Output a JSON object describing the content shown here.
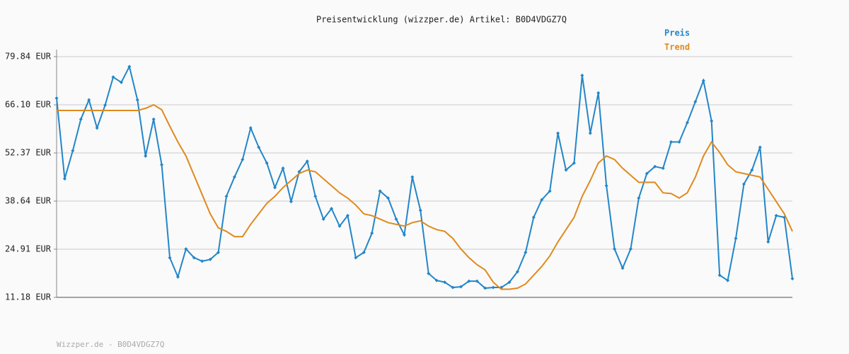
{
  "chart_data": {
    "type": "line",
    "title": "Preisentwicklung (wizzper.de) Artikel: B0D4VDGZ7Q",
    "footer": "Wizzper.de - B0D4VDGZ7Q",
    "ylim": [
      11.18,
      79.84
    ],
    "yticks": [
      {
        "value": 11.18,
        "label": "11.18 EUR"
      },
      {
        "value": 24.91,
        "label": "24.91 EUR"
      },
      {
        "value": 38.64,
        "label": "38.64 EUR"
      },
      {
        "value": 52.37,
        "label": "52.37 EUR"
      },
      {
        "value": 66.1,
        "label": "66.10 EUR"
      },
      {
        "value": 79.84,
        "label": "79.84 EUR"
      }
    ],
    "grid": true,
    "legend": "top-right",
    "series": [
      {
        "name": "Preis",
        "color": "#2386c8",
        "markers": true,
        "values": [
          68,
          45,
          53,
          62,
          67.5,
          59.5,
          66,
          74,
          72.5,
          77,
          67.5,
          51.5,
          62,
          49,
          22.5,
          17,
          25,
          22.5,
          21.5,
          22,
          24,
          40,
          45.5,
          50.5,
          59.5,
          54,
          49.5,
          42.5,
          48,
          38.5,
          47,
          50,
          40,
          33.5,
          36.5,
          31.5,
          34.5,
          22.5,
          24,
          29.5,
          41.5,
          39.5,
          33.5,
          29,
          45.5,
          36,
          18,
          16,
          15.5,
          14,
          14.2,
          15.8,
          15.8,
          13.8,
          14,
          14,
          15.5,
          18.5,
          24,
          34,
          39,
          41.5,
          58,
          47.5,
          49.5,
          74.5,
          58,
          69.5,
          43,
          25,
          19.5,
          25,
          39.5,
          46.5,
          48.5,
          48,
          55.5,
          55.5,
          61,
          67,
          73,
          61.5,
          17.5,
          16,
          28,
          43.5,
          47.5,
          54,
          27,
          34.5,
          34,
          16.5
        ]
      },
      {
        "name": "Trend",
        "color": "#e08a1e",
        "markers": false,
        "values": [
          64.5,
          64.5,
          64.5,
          64.5,
          64.5,
          64.5,
          64.5,
          64.5,
          64.5,
          64.5,
          64.5,
          65.1,
          66.1,
          64.7,
          60,
          55.5,
          51.5,
          46,
          40.5,
          35,
          31,
          30,
          28.5,
          28.5,
          32,
          35,
          38,
          40,
          42.5,
          44.5,
          46.5,
          47.5,
          47,
          45,
          43,
          41,
          39.5,
          37.5,
          35,
          34.5,
          33.5,
          32.5,
          32,
          31.5,
          32.5,
          33,
          31.5,
          30.5,
          30,
          28,
          25,
          22.5,
          20.5,
          19,
          15.5,
          13.5,
          13.5,
          13.8,
          15,
          17.5,
          20,
          23,
          27,
          30.5,
          34,
          40,
          44.5,
          49.5,
          51.5,
          50.5,
          48,
          46,
          44,
          44,
          44,
          41,
          40.8,
          39.5,
          41,
          45.5,
          51.5,
          55.5,
          52.5,
          49,
          47,
          46.5,
          46,
          45.5,
          42,
          38.5,
          35,
          30
        ]
      }
    ]
  }
}
